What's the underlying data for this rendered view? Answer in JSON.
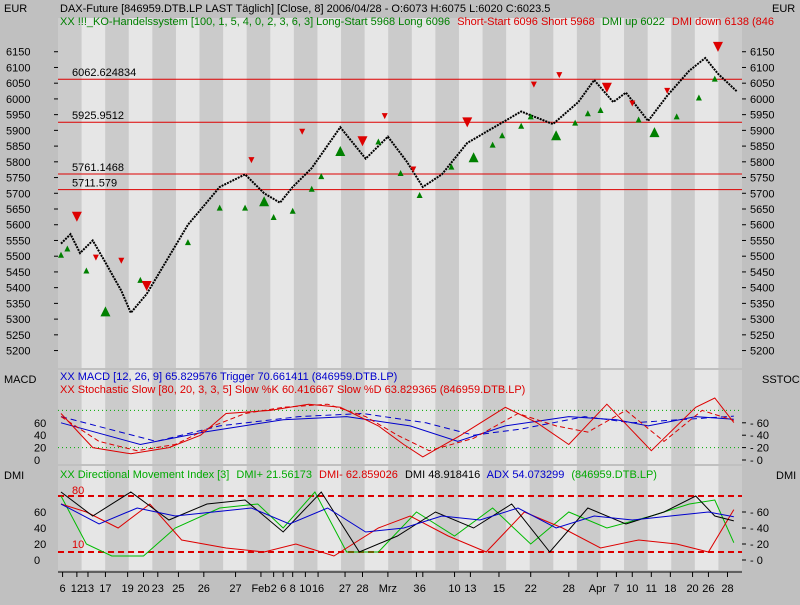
{
  "colors": {
    "panel_bg": "#e6e6e6",
    "stripe": "#b4b4b4",
    "frame": "#c0c0c0",
    "level_line": "#dd0000",
    "price": "#000000",
    "long_marker": "#008000",
    "short_marker": "#dd0000",
    "macd": "#0000cc",
    "stoch": "#dd0000",
    "dmi_plus": "#00bb00",
    "dmi_minus": "#dd0000",
    "adx": "#0000cc",
    "dmi": "#000000",
    "threshold": "#dd0000"
  },
  "header": {
    "currency_left": "EUR",
    "currency_right": "EUR",
    "title": "DAX-Future [846959.DTB.LP LAST Täglich] [Close, 8] 2006/04/28 - O:6073 H:6075 L:6020 C:6023.5",
    "system_prefix": "XX !!!_KO-Handelssystem [100, 1, 5, 4, 0, 2, 3, 6, 3] Long-Start 5968 Long 6096",
    "system_short": "Short-Start 6096 Short 5968",
    "system_dmi_up": "DMI up 6022",
    "system_dmi_down": "DMI down 6138 (846"
  },
  "price_levels": [
    {
      "label": "6062.624834",
      "value": 6062.624834
    },
    {
      "label": "5925.9512",
      "value": 5925.9512
    },
    {
      "label": "5761.1468",
      "value": 5761.1468
    },
    {
      "label": "5711.579",
      "value": 5711.579
    }
  ],
  "macd_panel": {
    "label_left": "MACD",
    "label_right": "SSTOC",
    "legend_macd": "XX MACD [12, 26, 9] 65.829576 Trigger 70.661411 (846959.DTB.LP)",
    "legend_stoch": "XX Stochastic Slow [80, 20, 3, 3, 5] Slow %K 60.416667 Slow %D 63.829365 (846959.DTB.LP)"
  },
  "dmi_panel": {
    "label_left": "DMI",
    "label_right": "DMI",
    "legend_prefix": "XX Directional Movement Index [3]",
    "legend_plus": "DMI+ 21.56173",
    "legend_minus": "DMI- 62.859026",
    "legend_dmi": "DMI 48.918416",
    "legend_adx": "ADX 54.073299",
    "legend_suffix": "(846959.DTB.LP)",
    "upper_label": "80",
    "lower_label": "10"
  },
  "chart_data": [
    {
      "type": "line",
      "title": "DAX-Future [846959.DTB.LP LAST Täglich] [Close, 8]",
      "ylabel": "EUR",
      "ylim": [
        5170,
        6200
      ],
      "yticks": [
        5200,
        5250,
        5300,
        5350,
        5400,
        5450,
        5500,
        5550,
        5600,
        5650,
        5700,
        5750,
        5800,
        5850,
        5900,
        5950,
        6000,
        6050,
        6100,
        6150
      ],
      "x_tick_labels": [
        "6",
        "12",
        "13",
        "17",
        "19",
        "20",
        "23",
        "25",
        "26",
        "27",
        "Feb",
        "2",
        "6",
        "8",
        "10",
        "16",
        "27",
        "28",
        "Mrz",
        "3",
        "6",
        "10",
        "13",
        "15",
        "22",
        "28",
        "Apr",
        "7",
        "10",
        "11",
        "18",
        "20",
        "26",
        "28"
      ],
      "x_tick_index": [
        0.5,
        5,
        8.5,
        14,
        21,
        26,
        30.5,
        37,
        45,
        55,
        63,
        67,
        70,
        73,
        77,
        81,
        89.5,
        95,
        103,
        112,
        114,
        124,
        129,
        138,
        148,
        160,
        169,
        175,
        180,
        186,
        192,
        199,
        204,
        210
      ],
      "series": [
        {
          "name": "Close",
          "x": [
            0,
            3,
            6,
            10,
            14,
            19,
            22,
            27,
            40,
            50,
            58,
            64,
            69,
            73,
            79,
            88,
            96,
            103,
            109,
            114,
            120,
            128,
            145,
            155,
            163,
            168,
            174,
            178,
            185,
            191,
            198,
            203,
            207,
            213
          ],
          "y": [
            5540,
            5570,
            5510,
            5550,
            5480,
            5390,
            5320,
            5380,
            5600,
            5720,
            5760,
            5700,
            5670,
            5720,
            5780,
            5910,
            5810,
            5880,
            5800,
            5720,
            5760,
            5860,
            5960,
            5920,
            5990,
            6060,
            5990,
            6020,
            5930,
            6010,
            6090,
            6130,
            6080,
            6023.5
          ]
        }
      ],
      "long_signals": {
        "x": [
          0,
          2,
          8,
          14,
          25,
          40,
          50,
          58,
          64,
          67,
          73,
          79,
          82,
          88,
          100,
          107,
          113,
          123,
          130,
          136,
          139,
          145,
          148,
          156,
          162,
          166,
          170,
          182,
          187,
          194,
          201,
          206
        ],
        "y": [
          5530,
          5550,
          5480,
          5350,
          5450,
          5570,
          5680,
          5680,
          5700,
          5650,
          5670,
          5740,
          5780,
          5860,
          5890,
          5790,
          5720,
          5810,
          5840,
          5880,
          5910,
          5940,
          5970,
          5910,
          5950,
          5980,
          5990,
          5960,
          5920,
          5970,
          6030,
          6090
        ]
      },
      "short_signals": {
        "x": [
          5,
          11,
          19,
          27,
          60,
          76,
          95,
          102,
          111,
          128,
          149,
          157,
          172,
          180,
          191,
          207
        ],
        "y": [
          5600,
          5470,
          5460,
          5380,
          5780,
          5870,
          5840,
          5920,
          5750,
          5900,
          6020,
          6050,
          6010,
          5960,
          6000,
          6140
        ]
      }
    },
    {
      "type": "line",
      "title": "MACD / Stochastic Slow",
      "ylim": [
        0,
        100
      ],
      "yticks": [
        0,
        20,
        40,
        60
      ],
      "series": [
        {
          "name": "MACD",
          "x": [
            0,
            25,
            45,
            70,
            90,
            110,
            125,
            140,
            160,
            175,
            185,
            200,
            212
          ],
          "y": [
            60,
            25,
            45,
            65,
            70,
            55,
            30,
            55,
            70,
            65,
            55,
            70,
            65.8
          ]
        },
        {
          "name": "Trigger",
          "x": [
            0,
            30,
            50,
            75,
            95,
            115,
            130,
            145,
            165,
            180,
            195,
            212
          ],
          "y": [
            70,
            30,
            55,
            70,
            75,
            60,
            40,
            50,
            70,
            60,
            65,
            70.7
          ]
        },
        {
          "name": "Slow %K",
          "x": [
            0,
            10,
            22,
            34,
            44,
            52,
            66,
            78,
            88,
            100,
            108,
            114,
            126,
            140,
            150,
            160,
            172,
            186,
            200,
            206,
            212
          ],
          "y": [
            75,
            20,
            10,
            20,
            40,
            75,
            80,
            90,
            85,
            55,
            25,
            5,
            40,
            85,
            60,
            25,
            90,
            15,
            85,
            100,
            60.4
          ]
        },
        {
          "name": "Slow %D",
          "x": [
            0,
            12,
            24,
            36,
            48,
            58,
            70,
            84,
            96,
            106,
            116,
            130,
            144,
            156,
            166,
            178,
            190,
            202,
            212
          ],
          "y": [
            70,
            30,
            15,
            25,
            55,
            75,
            85,
            90,
            70,
            40,
            15,
            35,
            75,
            55,
            45,
            80,
            30,
            80,
            63.8
          ]
        }
      ],
      "thresholds": [
        80,
        20
      ]
    },
    {
      "type": "line",
      "title": "Directional Movement Index [3]",
      "ylim": [
        -10,
        95
      ],
      "yticks": [
        0,
        20,
        40,
        60
      ],
      "thresholds": [
        80,
        10
      ],
      "series": [
        {
          "name": "DMI+",
          "x": [
            0,
            8,
            16,
            26,
            36,
            50,
            62,
            70,
            80,
            90,
            100,
            112,
            124,
            136,
            148,
            160,
            172,
            186,
            198,
            206,
            212
          ],
          "y": [
            80,
            20,
            5,
            5,
            40,
            65,
            70,
            40,
            85,
            10,
            10,
            60,
            30,
            65,
            20,
            60,
            40,
            55,
            70,
            75,
            21.6
          ]
        },
        {
          "name": "DMI-",
          "x": [
            0,
            8,
            18,
            28,
            38,
            52,
            64,
            74,
            86,
            100,
            110,
            122,
            134,
            146,
            158,
            170,
            182,
            194,
            204,
            212
          ],
          "y": [
            70,
            60,
            40,
            70,
            25,
            15,
            10,
            20,
            5,
            40,
            55,
            30,
            10,
            60,
            40,
            15,
            25,
            20,
            10,
            62.9
          ]
        },
        {
          "name": "DMI",
          "x": [
            0,
            10,
            22,
            34,
            46,
            58,
            70,
            82,
            94,
            106,
            118,
            130,
            142,
            154,
            166,
            178,
            190,
            200,
            206,
            212
          ],
          "y": [
            85,
            55,
            85,
            50,
            70,
            75,
            35,
            85,
            10,
            30,
            60,
            40,
            70,
            10,
            65,
            45,
            60,
            80,
            55,
            48.9
          ]
        },
        {
          "name": "ADX",
          "x": [
            0,
            12,
            24,
            36,
            48,
            60,
            72,
            84,
            96,
            108,
            120,
            132,
            144,
            156,
            168,
            180,
            192,
            204,
            212
          ],
          "y": [
            70,
            45,
            65,
            55,
            60,
            65,
            45,
            65,
            35,
            40,
            55,
            50,
            65,
            40,
            55,
            50,
            55,
            60,
            54.1
          ]
        }
      ]
    }
  ]
}
